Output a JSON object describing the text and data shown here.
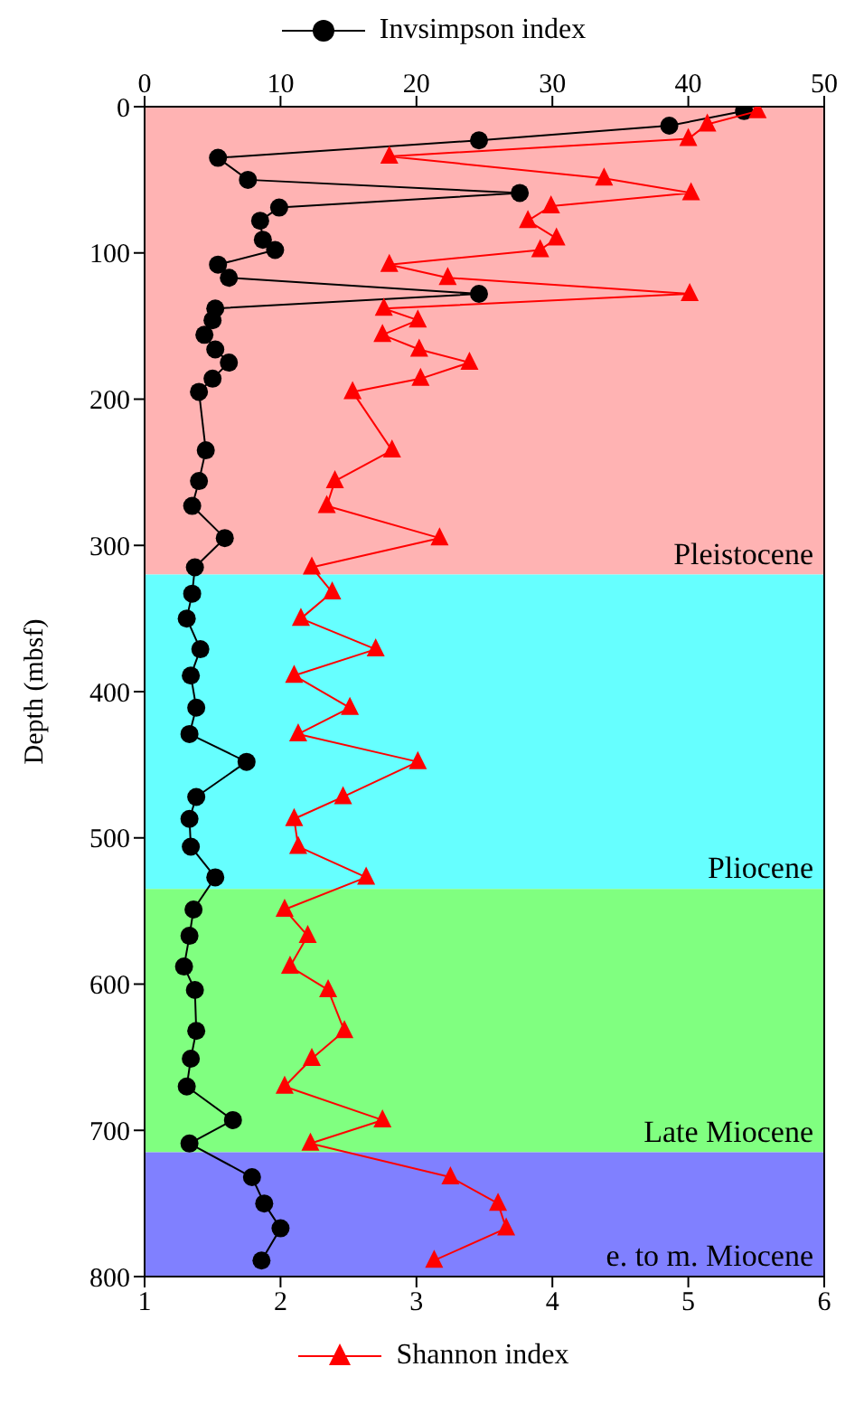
{
  "chart_data": {
    "type": "line",
    "ylabel": "Depth (mbsf)",
    "ylim": [
      800,
      0
    ],
    "yticks": [
      0,
      100,
      200,
      300,
      400,
      500,
      600,
      700,
      800
    ],
    "xlim": [
      1,
      6
    ],
    "xticks": [
      1,
      2,
      3,
      4,
      5,
      6
    ],
    "x2lim": [
      0,
      50
    ],
    "x2ticks": [
      0,
      10,
      20,
      30,
      40,
      50
    ],
    "grid": false,
    "legend": "top",
    "line_style": "solid",
    "bands": [
      {
        "axis": "y",
        "from": 0,
        "to": 320,
        "label": "Pleistocene",
        "color": "#ffb3b3"
      },
      {
        "axis": "y",
        "from": 320,
        "to": 535,
        "label": "Pliocene",
        "color": "#66ffff"
      },
      {
        "axis": "y",
        "from": 535,
        "to": 715,
        "label": "Late Miocene",
        "color": "#80ff80"
      },
      {
        "axis": "y",
        "from": 715,
        "to": 800,
        "label": "e. to m. Miocene",
        "color": "#8080ff"
      }
    ],
    "series": [
      {
        "name": "Invsimpson index",
        "color": "#000000",
        "axis": "x2",
        "marker": "circle",
        "x": [
          44.1,
          38.6,
          24.6,
          5.4,
          7.6,
          27.6,
          9.9,
          8.5,
          8.7,
          9.6,
          5.4,
          6.2,
          24.6,
          5.2,
          5.0,
          4.4,
          5.2,
          6.2,
          5.0,
          4.0,
          4.5,
          4.0,
          3.5,
          5.9,
          3.7,
          3.5,
          3.1,
          4.1,
          3.4,
          3.8,
          3.3,
          7.5,
          3.8,
          3.3,
          3.4,
          5.2,
          3.6,
          3.3,
          2.9,
          3.7,
          3.8,
          3.4,
          3.1,
          6.5,
          3.3,
          7.9,
          8.8,
          10.0,
          8.6
        ],
        "values": [
          3,
          13,
          23,
          35,
          50,
          59,
          69,
          78,
          91,
          98,
          108,
          117,
          128,
          138,
          146,
          156,
          166,
          175,
          186,
          195,
          235,
          256,
          273,
          295,
          315,
          333,
          350,
          371,
          389,
          411,
          429,
          448,
          472,
          487,
          506,
          527,
          549,
          567,
          588,
          604,
          632,
          651,
          670,
          693,
          709,
          732,
          750,
          767,
          789
        ]
      },
      {
        "name": "Shannon index",
        "color": "#ff0000",
        "marker": "triangle",
        "x": [
          5.51,
          5.14,
          5.0,
          2.8,
          4.38,
          5.02,
          3.99,
          3.82,
          4.03,
          3.91,
          2.8,
          3.23,
          5.01,
          2.76,
          3.01,
          2.75,
          3.02,
          3.39,
          3.03,
          2.53,
          2.82,
          2.4,
          2.34,
          3.17,
          2.23,
          2.38,
          2.15,
          2.7,
          2.1,
          2.51,
          2.13,
          3.01,
          2.46,
          2.1,
          2.13,
          2.63,
          2.03,
          2.2,
          2.07,
          2.35,
          2.47,
          2.23,
          2.03,
          2.75,
          2.22,
          3.25,
          3.6,
          3.66,
          3.13
        ],
        "values": [
          3,
          12,
          22,
          34,
          49,
          59,
          68,
          78,
          90,
          98,
          108,
          117,
          128,
          138,
          146,
          156,
          166,
          175,
          186,
          195,
          235,
          256,
          273,
          295,
          315,
          332,
          350,
          371,
          389,
          411,
          429,
          448,
          472,
          487,
          506,
          527,
          549,
          567,
          588,
          604,
          632,
          651,
          670,
          693,
          709,
          732,
          750,
          767,
          789
        ]
      }
    ]
  }
}
